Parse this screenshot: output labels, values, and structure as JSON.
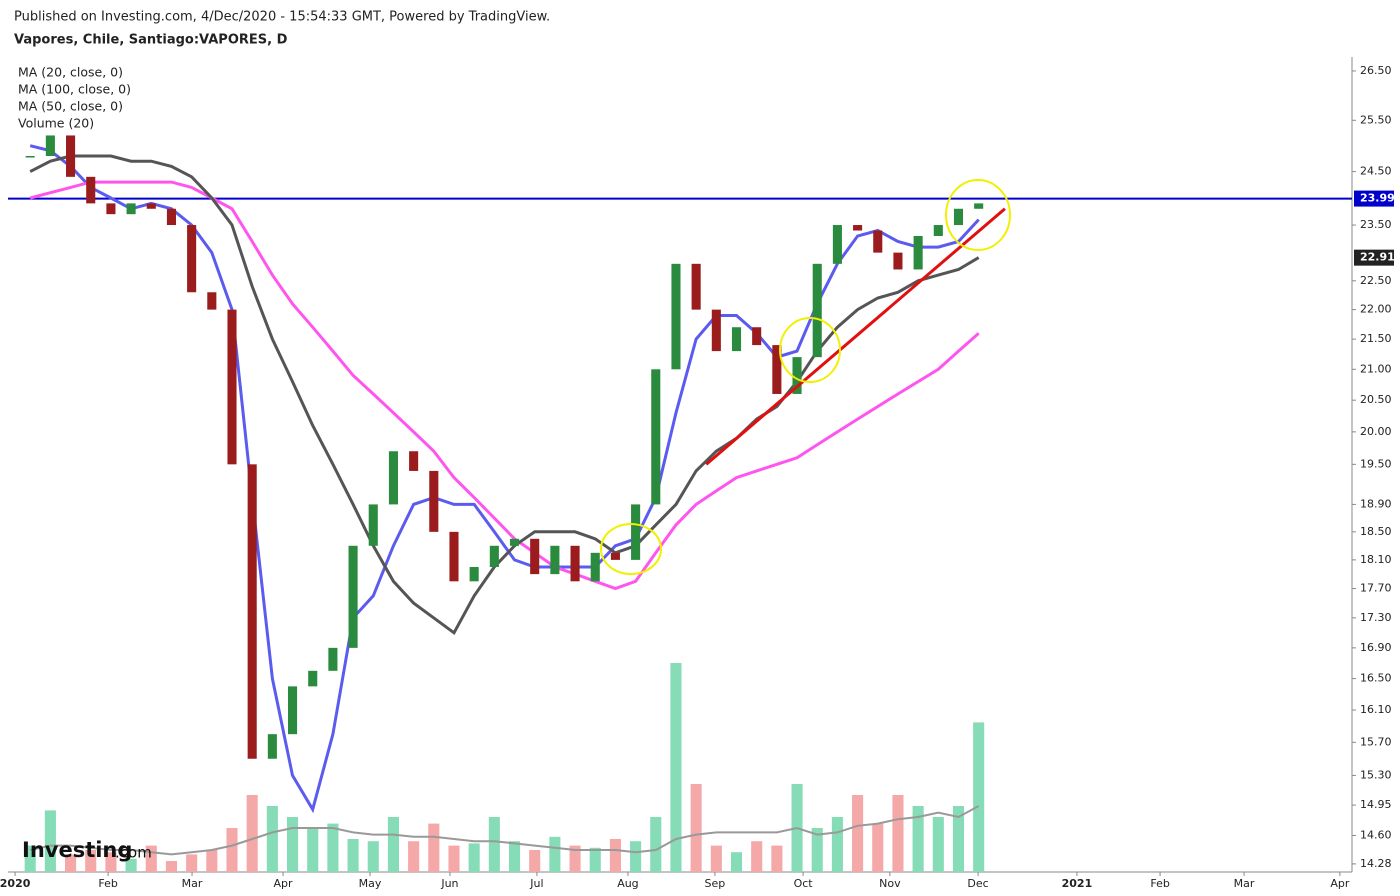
{
  "header": {
    "published": "Published on Investing.com, 4/Dec/2020 - 15:54:33 GMT, Powered by TradingView.",
    "symbol": "Vapores, Chile, Santiago:VAPORES, D"
  },
  "logo": {
    "main": "Investing",
    "suffix": ".com"
  },
  "chart_data": {
    "type": "candlestick",
    "log": true,
    "x": [
      1,
      2,
      3,
      4,
      5,
      6,
      7,
      8,
      9,
      10,
      11,
      12,
      13,
      14,
      15,
      16,
      17,
      18,
      19,
      20,
      21,
      22,
      23,
      24,
      25,
      26,
      27,
      28,
      29,
      30,
      31,
      32,
      33,
      34,
      35,
      36,
      37,
      38,
      39,
      40,
      41,
      42,
      43,
      44,
      45,
      46,
      47,
      48
    ],
    "xlim": [
      -0.1,
      66.5
    ],
    "xticks": [
      {
        "value": 0.25,
        "label": "2020"
      },
      {
        "value": 4.86,
        "label": "Feb"
      },
      {
        "value": 9.02,
        "label": "Mar"
      },
      {
        "value": 13.53,
        "label": "Apr"
      },
      {
        "value": 17.84,
        "label": "May"
      },
      {
        "value": 21.8,
        "label": "Jun"
      },
      {
        "value": 26.11,
        "label": "Jul"
      },
      {
        "value": 30.62,
        "label": "Aug"
      },
      {
        "value": 34.93,
        "label": "Sep"
      },
      {
        "value": 39.3,
        "label": "Oct"
      },
      {
        "value": 43.6,
        "label": "Nov"
      },
      {
        "value": 47.97,
        "label": "Dec"
      },
      {
        "value": 52.87,
        "label": "2021"
      },
      {
        "value": 56.99,
        "label": "Feb"
      },
      {
        "value": 61.15,
        "label": "Mar"
      },
      {
        "value": 65.9,
        "label": "Apr"
      }
    ],
    "ylim": [
      14.19,
      26.79
    ],
    "yticks": [
      {
        "value": 26.5,
        "label": "26.50"
      },
      {
        "value": 25.5,
        "label": "25.50"
      },
      {
        "value": 24.5,
        "label": "24.50"
      },
      {
        "value": 23.5,
        "label": "23.50"
      },
      {
        "value": 22.5,
        "label": "22.50"
      },
      {
        "value": 22,
        "label": "22.00"
      },
      {
        "value": 21.5,
        "label": "21.50"
      },
      {
        "value": 21,
        "label": "21.00"
      },
      {
        "value": 20.5,
        "label": "20.50"
      },
      {
        "value": 20,
        "label": "20.00"
      },
      {
        "value": 19.5,
        "label": "19.50"
      },
      {
        "value": 18.9,
        "label": "18.90"
      },
      {
        "value": 18.5,
        "label": "18.50"
      },
      {
        "value": 18.1,
        "label": "18.10"
      },
      {
        "value": 17.7,
        "label": "17.70"
      },
      {
        "value": 17.3,
        "label": "17.30"
      },
      {
        "value": 16.9,
        "label": "16.90"
      },
      {
        "value": 16.5,
        "label": "16.50"
      },
      {
        "value": 16.1,
        "label": "16.10"
      },
      {
        "value": 15.7,
        "label": "15.70"
      },
      {
        "value": 15.3,
        "label": "15.30"
      },
      14.95,
      {
        "value": 14.6,
        "label": "14.60"
      },
      14.28
    ],
    "price": {
      "up_color": "#2a8a3e",
      "down_color": "#9b1c1c",
      "values": [
        24.8,
        25.2,
        24.4,
        23.9,
        23.7,
        23.9,
        23.8,
        23.5,
        22.3,
        22.0,
        19.5,
        15.5,
        15.8,
        16.4,
        16.6,
        16.9,
        18.3,
        18.9,
        19.7,
        19.4,
        18.5,
        17.8,
        18.0,
        18.3,
        18.4,
        17.9,
        18.3,
        17.8,
        18.2,
        18.1,
        18.9,
        21.0,
        22.8,
        22.0,
        21.3,
        21.7,
        21.4,
        20.6,
        21.2,
        22.8,
        23.5,
        23.4,
        23.0,
        22.7,
        23.3,
        23.5,
        23.8,
        23.9
      ]
    },
    "series": [
      {
        "name": "MA (20, close, 0)",
        "color": "#5b5bf0",
        "values": [
          25.0,
          24.9,
          24.6,
          24.2,
          24.0,
          23.8,
          23.9,
          23.8,
          23.5,
          23.0,
          22.0,
          19.0,
          16.5,
          15.3,
          14.9,
          15.8,
          17.3,
          17.6,
          18.3,
          18.9,
          19.0,
          18.9,
          18.9,
          18.5,
          18.1,
          18.0,
          18.0,
          18.0,
          18.0,
          18.3,
          18.4,
          19.0,
          20.3,
          21.5,
          21.9,
          21.9,
          21.6,
          21.2,
          21.3,
          22.1,
          22.8,
          23.3,
          23.4,
          23.2,
          23.1,
          23.1,
          23.2,
          23.6
        ]
      },
      {
        "name": "MA (100, close, 0)",
        "color": "#ff55ee",
        "values": [
          24.0,
          24.1,
          24.2,
          24.3,
          24.3,
          24.3,
          24.3,
          24.3,
          24.2,
          24.0,
          23.8,
          23.2,
          22.6,
          22.1,
          21.7,
          21.3,
          20.9,
          20.6,
          20.3,
          20.0,
          19.7,
          19.3,
          19.0,
          18.7,
          18.4,
          18.2,
          18.0,
          17.9,
          17.8,
          17.7,
          17.8,
          18.2,
          18.6,
          18.9,
          19.1,
          19.3,
          19.4,
          19.5,
          19.6,
          19.8,
          20.0,
          20.2,
          20.4,
          20.6,
          20.8,
          21.0,
          21.3,
          21.6
        ]
      },
      {
        "name": "MA (50, close, 0)",
        "color": "#555555",
        "values": [
          24.5,
          24.7,
          24.8,
          24.8,
          24.8,
          24.7,
          24.7,
          24.6,
          24.4,
          24.0,
          23.5,
          22.4,
          21.5,
          20.8,
          20.1,
          19.5,
          18.9,
          18.3,
          17.8,
          17.5,
          17.3,
          17.1,
          17.6,
          18.0,
          18.3,
          18.5,
          18.5,
          18.5,
          18.4,
          18.2,
          18.3,
          18.6,
          18.9,
          19.4,
          19.7,
          19.9,
          20.2,
          20.4,
          20.8,
          21.3,
          21.7,
          22.0,
          22.2,
          22.3,
          22.5,
          22.6,
          22.7,
          22.91
        ]
      }
    ],
    "volume": {
      "name": "Volume (20)",
      "vlim": [
        0,
        100
      ],
      "up_color": "#86dcb6",
      "down_color": "#f5a8a8",
      "ma_color": "#999999",
      "values": [
        12,
        28,
        8,
        10,
        9,
        6,
        12,
        5,
        8,
        10,
        20,
        35,
        30,
        25,
        20,
        22,
        15,
        14,
        25,
        14,
        22,
        12,
        13,
        25,
        14,
        10,
        16,
        12,
        11,
        15,
        14,
        25,
        95,
        40,
        12,
        9,
        14,
        12,
        40,
        20,
        25,
        35,
        22,
        35,
        30,
        25,
        30,
        68
      ],
      "ma_values": [
        10,
        12,
        12,
        11,
        10,
        10,
        9,
        8,
        9,
        10,
        12,
        15,
        18,
        20,
        20,
        20,
        18,
        17,
        17,
        16,
        16,
        15,
        14,
        14,
        13,
        12,
        11,
        10,
        10,
        10,
        9,
        10,
        15,
        17,
        18,
        18,
        18,
        18,
        20,
        17,
        18,
        21,
        22,
        24,
        25,
        27,
        25,
        30
      ]
    },
    "markers": [
      {
        "value": 23.99,
        "color": "#0000cc"
      },
      {
        "value": 22.91,
        "color": "#222222"
      }
    ],
    "hline": {
      "value": 23.99,
      "color": "#0000cc"
    },
    "trendline": {
      "x": [
        34.5,
        49.3
      ],
      "values": [
        19.5,
        23.8
      ],
      "color": "#e01010"
    }
  }
}
